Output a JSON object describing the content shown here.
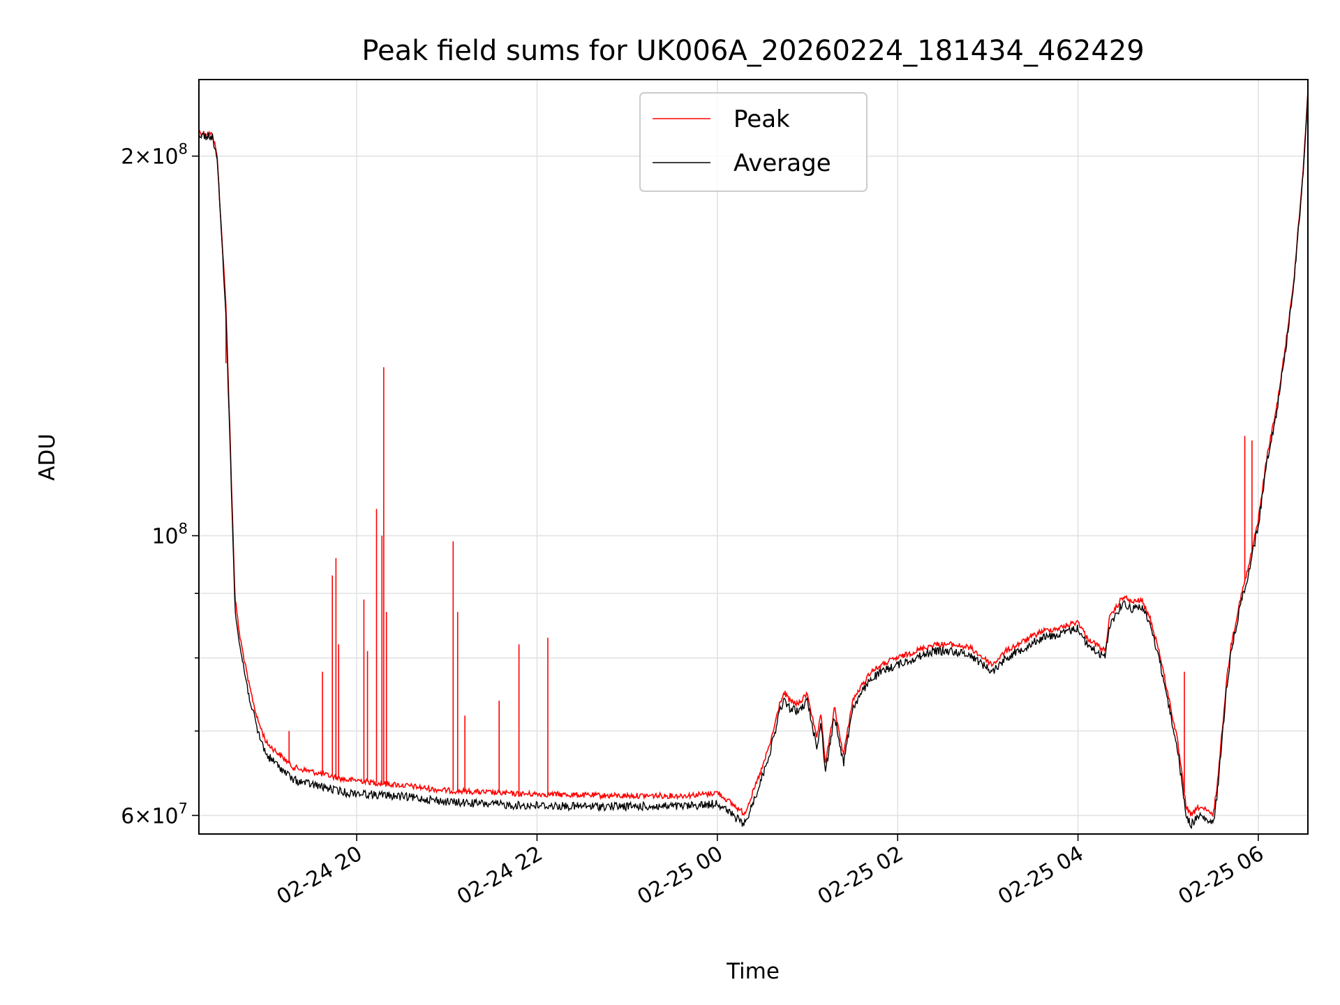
{
  "chart_data": {
    "type": "line",
    "title": "Peak field sums for UK006A_20260224_181434_462429",
    "xlabel": "Time",
    "ylabel": "ADU",
    "yscale": "log",
    "ylim": [
      58000000,
      230000000
    ],
    "xlim": [
      -1.75,
      10.55
    ],
    "grid": true,
    "legend_position": "top-center",
    "x_unit": "hours since 2026-02-24 20:00",
    "x_ticks": [
      {
        "value": 0,
        "label": "02-24 20"
      },
      {
        "value": 2,
        "label": "02-24 22"
      },
      {
        "value": 4,
        "label": "02-25 00"
      },
      {
        "value": 6,
        "label": "02-25 02"
      },
      {
        "value": 8,
        "label": "02-25 04"
      },
      {
        "value": 10,
        "label": "02-25 06"
      }
    ],
    "y_major_ticks": [
      {
        "value": 60000000,
        "mantissa": "6",
        "exponent": "7"
      },
      {
        "value": 100000000,
        "mantissa": "",
        "exponent": "8"
      },
      {
        "value": 200000000,
        "mantissa": "2",
        "exponent": "8"
      }
    ],
    "y_minor_ticks": [
      70000000,
      80000000,
      90000000
    ],
    "legend": [
      {
        "label": "Peak",
        "color": "#ff0000"
      },
      {
        "label": "Average",
        "color": "#000000"
      }
    ],
    "series": [
      {
        "name": "Average",
        "color": "#000000",
        "x": [
          -1.75,
          -1.6,
          -1.55,
          -1.45,
          -1.4,
          -1.35,
          -1.3,
          -1.2,
          -1.1,
          -1.0,
          -0.9,
          -0.8,
          -0.7,
          -0.5,
          -0.3,
          -0.1,
          0.0,
          0.2,
          0.4,
          0.6,
          0.8,
          1.0,
          1.2,
          1.4,
          1.6,
          1.8,
          2.0,
          2.4,
          2.8,
          3.2,
          3.6,
          3.9,
          4.0,
          4.3,
          4.4,
          4.5,
          4.6,
          4.7,
          4.75,
          4.8,
          4.9,
          5.0,
          5.1,
          5.15,
          5.2,
          5.3,
          5.4,
          5.5,
          5.7,
          5.9,
          6.0,
          6.2,
          6.4,
          6.6,
          6.8,
          6.95,
          7.05,
          7.2,
          7.4,
          7.6,
          7.8,
          8.0,
          8.1,
          8.3,
          8.35,
          8.5,
          8.6,
          8.7,
          8.8,
          8.9,
          9.1,
          9.2,
          9.25,
          9.35,
          9.5,
          9.55,
          9.65,
          9.7,
          9.8,
          9.9,
          10.0,
          10.1,
          10.2,
          10.3,
          10.4,
          10.5,
          10.55
        ],
        "values": [
          208000000,
          207000000,
          200000000,
          150000000,
          115000000,
          88000000,
          82000000,
          75000000,
          70000000,
          67000000,
          66000000,
          65000000,
          64000000,
          63500000,
          63000000,
          62500000,
          62500000,
          62300000,
          62200000,
          62000000,
          61800000,
          61500000,
          61400000,
          61300000,
          61200000,
          61100000,
          61100000,
          61000000,
          61000000,
          61000000,
          61000000,
          61200000,
          61400000,
          59000000,
          61500000,
          64500000,
          68000000,
          73000000,
          74000000,
          73000000,
          72500000,
          74000000,
          68000000,
          71000000,
          65000000,
          72000000,
          66000000,
          73000000,
          77000000,
          78500000,
          79000000,
          80000000,
          81000000,
          81000000,
          80500000,
          79000000,
          78000000,
          80000000,
          81500000,
          83000000,
          83500000,
          84500000,
          82000000,
          80000000,
          85000000,
          88500000,
          87500000,
          88000000,
          85000000,
          80000000,
          68000000,
          60000000,
          59000000,
          60000000,
          59000000,
          63000000,
          76000000,
          81000000,
          88000000,
          94000000,
          102000000,
          115000000,
          125000000,
          140000000,
          160000000,
          195000000,
          225000000
        ]
      },
      {
        "name": "Peak",
        "color": "#ff0000",
        "x": [
          -1.75,
          -1.6,
          -1.55,
          -1.45,
          -1.4,
          -1.35,
          -1.3,
          -1.2,
          -1.1,
          -1.0,
          -0.9,
          -0.8,
          -0.7,
          -0.5,
          -0.3,
          -0.1,
          0.0,
          0.2,
          0.4,
          0.6,
          0.8,
          1.0,
          1.2,
          1.4,
          1.6,
          1.8,
          2.0,
          2.4,
          2.8,
          3.2,
          3.6,
          3.9,
          4.0,
          4.3,
          4.4,
          4.5,
          4.6,
          4.7,
          4.75,
          4.8,
          4.9,
          5.0,
          5.1,
          5.15,
          5.2,
          5.3,
          5.4,
          5.5,
          5.7,
          5.9,
          6.0,
          6.2,
          6.4,
          6.6,
          6.8,
          6.95,
          7.05,
          7.2,
          7.4,
          7.6,
          7.8,
          8.0,
          8.1,
          8.3,
          8.35,
          8.5,
          8.6,
          8.7,
          8.8,
          8.9,
          9.1,
          9.2,
          9.25,
          9.35,
          9.5,
          9.55,
          9.65,
          9.7,
          9.8,
          9.9,
          10.0,
          10.1,
          10.2,
          10.3,
          10.4,
          10.5,
          10.55
        ],
        "values": [
          209000000,
          208000000,
          201000000,
          152000000,
          117000000,
          89500000,
          83500000,
          76500000,
          71500000,
          68500000,
          67500000,
          66500000,
          65500000,
          65000000,
          64500000,
          64000000,
          64000000,
          63700000,
          63500000,
          63300000,
          63000000,
          62800000,
          62700000,
          62600000,
          62500000,
          62400000,
          62400000,
          62300000,
          62200000,
          62200000,
          62200000,
          62400000,
          62600000,
          60200000,
          62700000,
          65500000,
          69000000,
          74000000,
          75000000,
          74000000,
          73500000,
          75000000,
          69000000,
          72000000,
          66000000,
          73000000,
          67000000,
          74000000,
          78000000,
          79500000,
          80000000,
          81000000,
          82000000,
          82000000,
          81500000,
          80000000,
          79000000,
          81000000,
          82500000,
          84000000,
          84500000,
          85500000,
          83000000,
          81000000,
          86000000,
          89500000,
          88500000,
          89000000,
          86000000,
          81000000,
          69000000,
          61000000,
          60000000,
          61000000,
          60000000,
          64000000,
          77000000,
          82000000,
          89000000,
          95000000,
          103000000,
          116000000,
          126000000,
          141000000,
          161000000,
          196000000,
          226000000
        ]
      }
    ],
    "peak_spikes": [
      {
        "x": -1.45,
        "value": 137000000
      },
      {
        "x": -0.75,
        "value": 70000000
      },
      {
        "x": -0.38,
        "value": 78000000
      },
      {
        "x": -0.27,
        "value": 93000000
      },
      {
        "x": -0.23,
        "value": 96000000
      },
      {
        "x": -0.2,
        "value": 82000000
      },
      {
        "x": 0.08,
        "value": 89000000
      },
      {
        "x": 0.12,
        "value": 81000000
      },
      {
        "x": 0.22,
        "value": 105000000
      },
      {
        "x": 0.28,
        "value": 100000000
      },
      {
        "x": 0.3,
        "value": 136000000
      },
      {
        "x": 0.33,
        "value": 87000000
      },
      {
        "x": 1.07,
        "value": 99000000
      },
      {
        "x": 1.12,
        "value": 87000000
      },
      {
        "x": 1.2,
        "value": 72000000
      },
      {
        "x": 1.58,
        "value": 74000000
      },
      {
        "x": 1.8,
        "value": 82000000
      },
      {
        "x": 2.12,
        "value": 83000000
      },
      {
        "x": 9.18,
        "value": 78000000
      },
      {
        "x": 9.85,
        "value": 120000000
      },
      {
        "x": 9.93,
        "value": 119000000
      }
    ]
  }
}
